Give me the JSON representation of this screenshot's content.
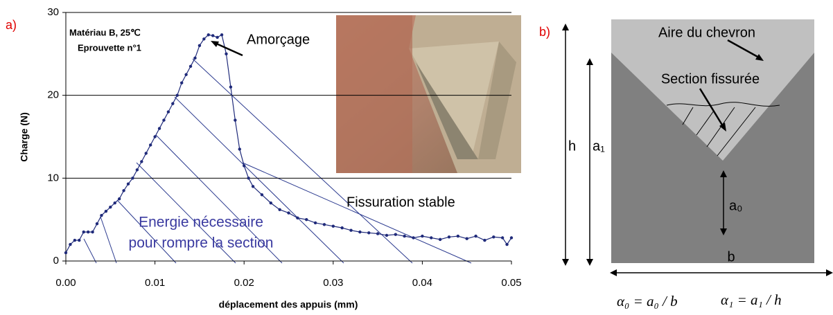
{
  "chart_data": {
    "type": "line",
    "panel_label": "a)",
    "xlabel": "déplacement des appuis (mm)",
    "ylabel": "Charge (N)",
    "annotations": {
      "material": "Matériau B, 25℃",
      "specimen": "Eprouvette n°1",
      "initiation": "Amorçage",
      "stable": "Fissuration stable",
      "energy_1": "Energie nécessaire",
      "energy_2": "pour rompre la section"
    },
    "color": "#1f2a7a",
    "x": [
      0,
      0.0005,
      0.001,
      0.0015,
      0.002,
      0.0025,
      0.003,
      0.0035,
      0.004,
      0.0045,
      0.005,
      0.0055,
      0.006,
      0.0065,
      0.007,
      0.0075,
      0.008,
      0.0085,
      0.009,
      0.0095,
      0.01,
      0.0105,
      0.011,
      0.0115,
      0.012,
      0.0125,
      0.013,
      0.0135,
      0.014,
      0.0145,
      0.015,
      0.0155,
      0.016,
      0.0165,
      0.017,
      0.0175,
      0.018,
      0.0185,
      0.019,
      0.0195,
      0.02,
      0.0205,
      0.021,
      0.022,
      0.023,
      0.024,
      0.025,
      0.026,
      0.027,
      0.028,
      0.029,
      0.03,
      0.031,
      0.032,
      0.033,
      0.034,
      0.035,
      0.036,
      0.037,
      0.038,
      0.039,
      0.04,
      0.041,
      0.042,
      0.043,
      0.044,
      0.045,
      0.046,
      0.047,
      0.048,
      0.049,
      0.0495,
      0.05
    ],
    "values": [
      1,
      2,
      2.5,
      2.5,
      3.5,
      3.5,
      3.5,
      4.5,
      5.5,
      6,
      6.5,
      7,
      7.5,
      8.5,
      9.3,
      10,
      11,
      12,
      13,
      14,
      15,
      16,
      17,
      18,
      19,
      20,
      21.5,
      22.5,
      23.5,
      24.5,
      26,
      26.8,
      27.3,
      27.2,
      27,
      27.3,
      25,
      21,
      17,
      13.5,
      11.5,
      10,
      9,
      8,
      7,
      6.2,
      5.8,
      5.2,
      5,
      4.6,
      4.4,
      4.2,
      4,
      3.7,
      3.5,
      3.4,
      3.3,
      3.1,
      3.2,
      3,
      2.8,
      3,
      2.8,
      2.6,
      2.9,
      3,
      2.7,
      3,
      2.5,
      2.9,
      2.8,
      2,
      2.8
    ],
    "xlim": [
      0,
      0.05
    ],
    "ylim": [
      0,
      30
    ],
    "xticks": [
      {
        "value": 0,
        "label": "0.00"
      },
      {
        "value": 0.01,
        "label": "0.01"
      },
      {
        "value": 0.02,
        "label": "0.02"
      },
      {
        "value": 0.03,
        "label": "0.03"
      },
      {
        "value": 0.04,
        "label": "0.04"
      },
      {
        "value": 0.05,
        "label": "0.05"
      }
    ],
    "yticks": [
      0,
      10,
      20,
      30
    ],
    "grid": true
  },
  "diagram": {
    "panel_label": "b)",
    "chevron_area": "Aire du chevron",
    "cracked_section": "Section fissurée",
    "h": "h",
    "a1": "a₁",
    "a0": "a₀",
    "b": "b",
    "alpha0": "α₀ = a₀ / b",
    "alpha1": "α₁ = a₁ / h"
  }
}
